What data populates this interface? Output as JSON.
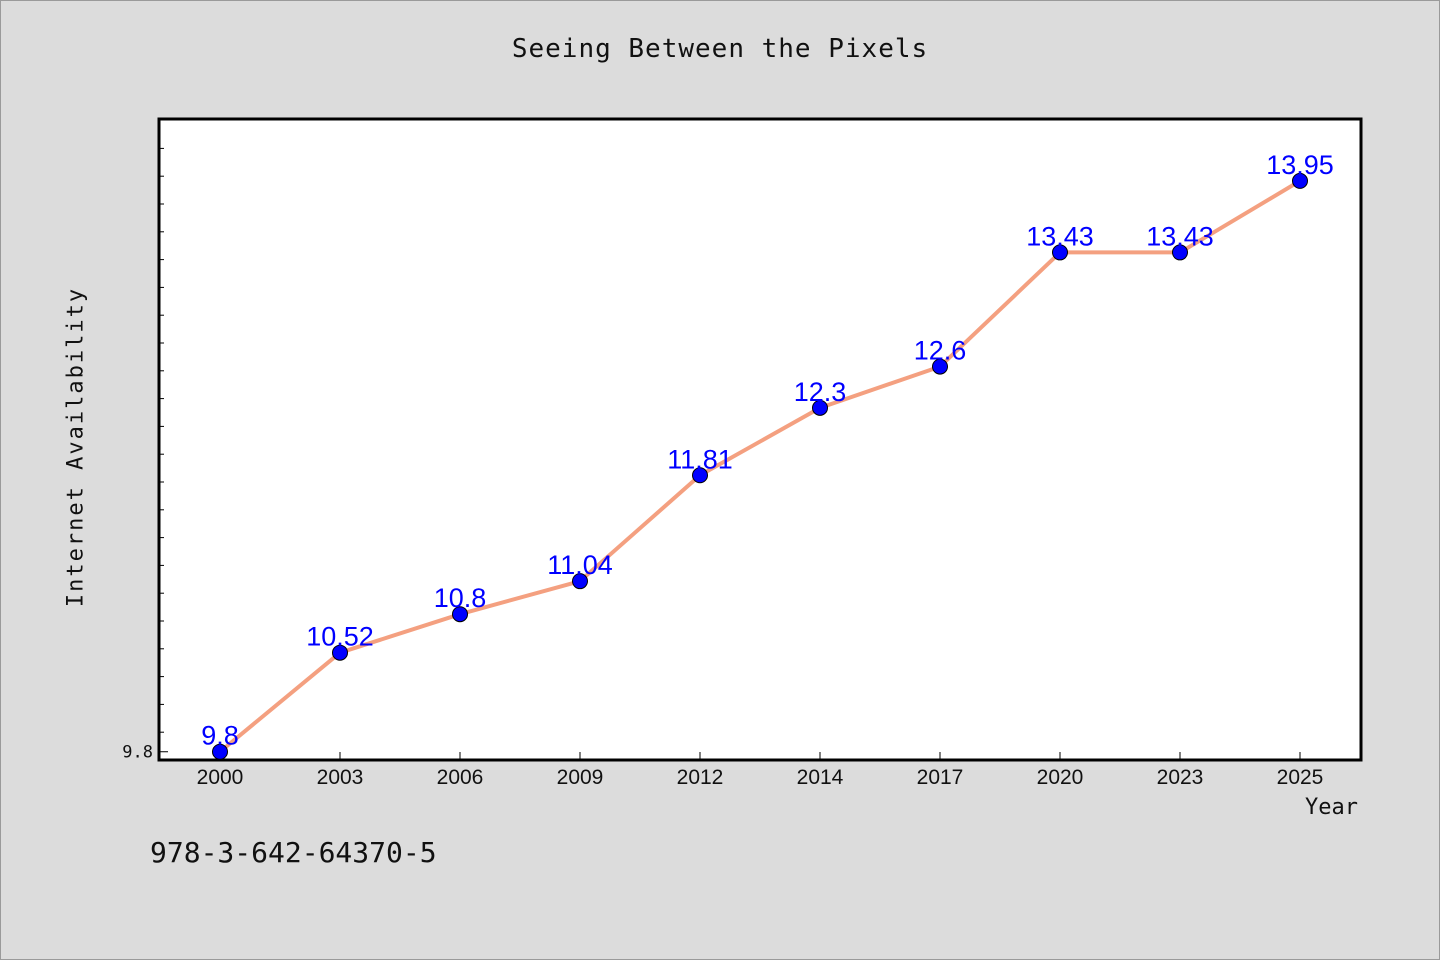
{
  "chart_data": {
    "type": "line",
    "title": "Seeing Between the Pixels",
    "xlabel": "Year",
    "ylabel": "Internet Availability",
    "categories": [
      "2000",
      "2003",
      "2006",
      "2009",
      "2012",
      "2014",
      "2017",
      "2020",
      "2023",
      "2025"
    ],
    "series": [
      {
        "values": [
          9.8,
          10.52,
          10.8,
          11.04,
          11.81,
          12.3,
          12.6,
          13.43,
          13.43,
          13.95
        ],
        "data_labels": [
          "9.8",
          "10.52",
          "10.8",
          "11.04",
          "11.81",
          "12.3",
          "12.6",
          "13.43",
          "13.43",
          "13.95"
        ]
      }
    ],
    "ylim": [
      9.74,
      14.4
    ],
    "y_tick_labels": [
      "9.8"
    ],
    "grid": false,
    "line_color": "#f4a080",
    "marker_color": "#0000ff",
    "data_label_color": "#0000ff",
    "plot_background": "#ffffff"
  },
  "footer": {
    "code": "978-3-642-64370-5"
  }
}
